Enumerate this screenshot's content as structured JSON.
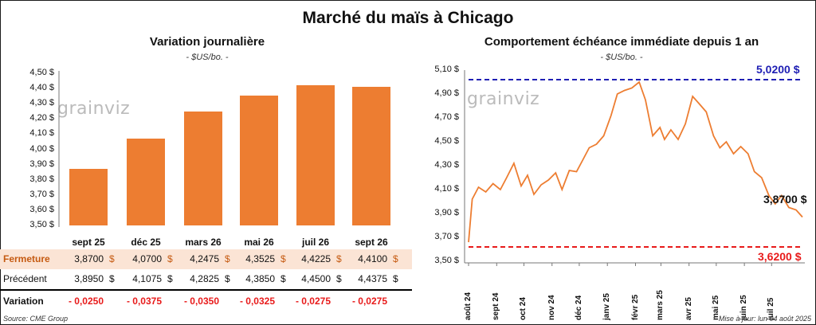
{
  "main_title": "Marché du maïs à Chicago",
  "left": {
    "title": "Variation journalière",
    "unit": "- $US/bo. -",
    "watermark": "grainviz",
    "y_ticks": [
      "4,50 $",
      "4,40 $",
      "4,30 $",
      "4,20 $",
      "4,10 $",
      "4,00 $",
      "3,90 $",
      "3,80 $",
      "3,70 $",
      "3,60 $",
      "3,50 $"
    ],
    "table": {
      "close_label": "Fermeture",
      "prev_label": "Précédent",
      "var_label": "Variation",
      "currency": "$",
      "close": [
        "3,8700",
        "4,0700",
        "4,2475",
        "4,3525",
        "4,4225",
        "4,4100"
      ],
      "previous": [
        "3,8950",
        "4,1075",
        "4,2825",
        "4,3850",
        "4,4500",
        "4,4375"
      ],
      "variation": [
        "- 0,0250",
        "- 0,0375",
        "- 0,0350",
        "- 0,0325",
        "- 0,0275",
        "- 0,0275"
      ]
    }
  },
  "right": {
    "title": "Comportement échéance immédiate depuis 1 an",
    "unit": "- $US/bo. -",
    "watermark": "grainviz",
    "y_ticks": [
      "5,10 $",
      "4,90 $",
      "4,70 $",
      "4,50 $",
      "4,30 $",
      "4,10 $",
      "3,90 $",
      "3,70 $",
      "3,50 $"
    ],
    "x_ticks": [
      "août 24",
      "sept 24",
      "oct 24",
      "nov 24",
      "déc 24",
      "janv 25",
      "févr 25",
      "mars 25",
      "avr 25",
      "mai 25",
      "juin 25",
      "juil 25"
    ],
    "high_label": "5,0200 $",
    "low_label": "3,6200 $",
    "last_label": "3,8700 $"
  },
  "footer": {
    "source": "Source: CME Group",
    "updated": "Mise à jour: lun 04 août 2025"
  },
  "chart_data": [
    {
      "type": "bar",
      "title": "Variation journalière",
      "ylabel": "$US/bo.",
      "categories": [
        "sept 25",
        "déc 25",
        "mars 26",
        "mai 26",
        "juil 26",
        "sept 26"
      ],
      "values": [
        3.87,
        4.07,
        4.2475,
        4.3525,
        4.4225,
        4.41
      ],
      "ylim": [
        3.5,
        4.5
      ],
      "color": "#ed7d31",
      "grid": false
    },
    {
      "type": "line",
      "title": "Comportement échéance immédiate depuis 1 an",
      "ylabel": "$US/bo.",
      "ylim": [
        3.5,
        5.1
      ],
      "color": "#ed7d31",
      "high": 5.02,
      "low": 3.62,
      "last": 3.87,
      "high_color": "#1f1fb4",
      "low_color": "#e81a1a",
      "x": [
        "2024-08-01",
        "2024-08-05",
        "2024-08-12",
        "2024-08-20",
        "2024-08-28",
        "2024-09-05",
        "2024-09-12",
        "2024-09-20",
        "2024-09-28",
        "2024-10-05",
        "2024-10-12",
        "2024-10-20",
        "2024-10-28",
        "2024-11-05",
        "2024-11-12",
        "2024-11-20",
        "2024-11-28",
        "2024-12-05",
        "2024-12-12",
        "2024-12-20",
        "2024-12-28",
        "2025-01-05",
        "2025-01-12",
        "2025-01-20",
        "2025-01-28",
        "2025-02-05",
        "2025-02-12",
        "2025-02-20",
        "2025-02-28",
        "2025-03-05",
        "2025-03-12",
        "2025-03-20",
        "2025-03-28",
        "2025-04-05",
        "2025-04-12",
        "2025-04-20",
        "2025-04-28",
        "2025-05-05",
        "2025-05-12",
        "2025-05-20",
        "2025-05-28",
        "2025-06-05",
        "2025-06-12",
        "2025-06-20",
        "2025-06-28",
        "2025-07-05",
        "2025-07-12",
        "2025-07-20",
        "2025-07-28",
        "2025-08-04"
      ],
      "values": [
        3.66,
        4.02,
        4.12,
        4.08,
        4.15,
        4.1,
        4.2,
        4.32,
        4.13,
        4.22,
        4.06,
        4.14,
        4.18,
        4.24,
        4.1,
        4.26,
        4.25,
        4.35,
        4.45,
        4.48,
        4.55,
        4.72,
        4.9,
        4.93,
        4.95,
        5.0,
        4.85,
        4.55,
        4.62,
        4.52,
        4.6,
        4.52,
        4.65,
        4.88,
        4.82,
        4.75,
        4.55,
        4.45,
        4.5,
        4.4,
        4.46,
        4.4,
        4.25,
        4.2,
        4.05,
        3.98,
        4.05,
        3.95,
        3.93,
        3.87
      ]
    }
  ]
}
